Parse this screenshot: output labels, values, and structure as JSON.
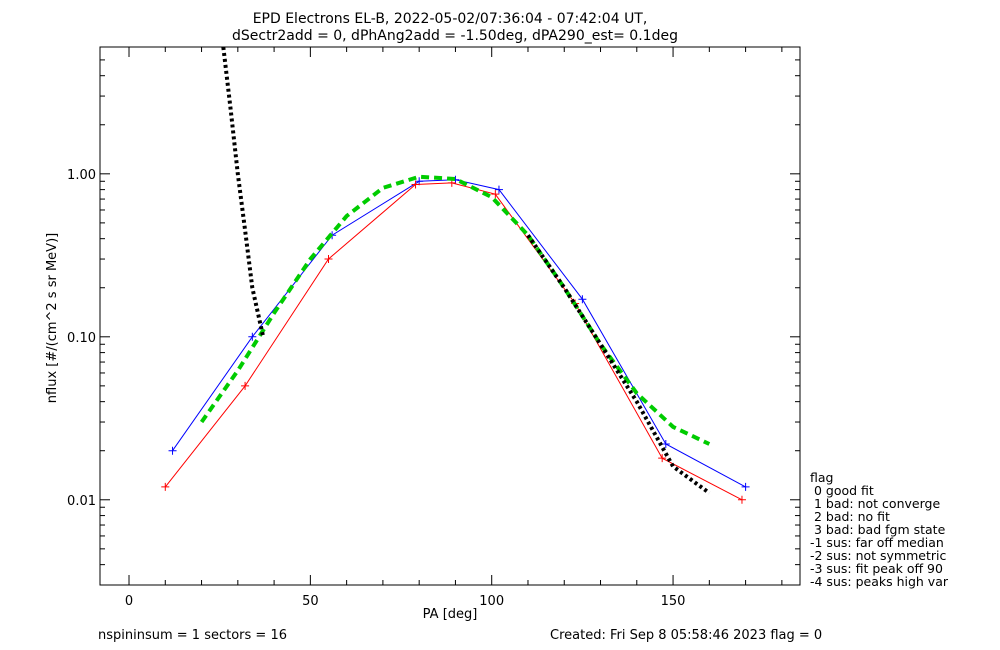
{
  "chart_data": {
    "type": "line",
    "title": "EPD Electrons EL-B, 2022-05-02/07:36:04 - 07:42:04 UT,",
    "subtitle": "dSectr2add = 0, dPhAng2add = -1.50deg, dPA290_est=   0.1deg",
    "xlabel": "PA [deg]",
    "ylabel": "nflux [#/(cm^2 s sr MeV)]",
    "xlim": [
      -8,
      185
    ],
    "ylim": [
      0.003,
      6
    ],
    "yscale": "log",
    "x_ticks": [
      {
        "value": 0,
        "label": "0"
      },
      {
        "value": 50,
        "label": "50"
      },
      {
        "value": 100,
        "label": "100"
      },
      {
        "value": 150,
        "label": "150"
      }
    ],
    "y_ticks": [
      {
        "value": 0.01,
        "label": "0.01"
      },
      {
        "value": 0.1,
        "label": "0.10"
      },
      {
        "value": 1,
        "label": "1.00"
      }
    ],
    "series": [
      {
        "color": "#0000ff",
        "style": "solid",
        "marker": "+",
        "x": [
          12,
          34,
          56,
          80,
          90,
          102,
          125,
          148,
          170
        ],
        "y": [
          0.02,
          0.1,
          0.42,
          0.9,
          0.92,
          0.8,
          0.17,
          0.022,
          0.012
        ]
      },
      {
        "color": "#ff0000",
        "style": "solid",
        "marker": "+",
        "x": [
          10,
          32,
          55,
          79,
          89,
          101,
          123,
          147,
          169
        ],
        "y": [
          0.012,
          0.05,
          0.3,
          0.86,
          0.88,
          0.75,
          0.16,
          0.018,
          0.01
        ]
      },
      {
        "color": "#00cc00",
        "style": "dashed",
        "x": [
          20,
          30,
          40,
          50,
          60,
          70,
          80,
          90,
          100,
          110,
          120,
          130,
          140,
          150,
          160
        ],
        "y": [
          0.03,
          0.062,
          0.14,
          0.3,
          0.55,
          0.82,
          0.96,
          0.93,
          0.72,
          0.42,
          0.2,
          0.09,
          0.045,
          0.028,
          0.022
        ]
      },
      {
        "color": "#000000",
        "style": "dotted",
        "x": [
          26,
          28,
          30,
          32,
          34,
          37
        ],
        "y": [
          6,
          2.5,
          1.0,
          0.45,
          0.2,
          0.1
        ]
      },
      {
        "color": "#000000",
        "style": "dotted",
        "x": [
          110,
          120,
          130,
          140,
          150,
          160
        ],
        "y": [
          0.42,
          0.2,
          0.09,
          0.04,
          0.016,
          0.011
        ]
      }
    ],
    "legend": {
      "placement": "right",
      "items": [
        "flag",
        " 0 good fit",
        " 1 bad: not converge",
        " 2 bad: no fit",
        " 3 bad: bad fgm state",
        "-1 sus: far off median",
        "-2 sus: not symmetric",
        "-3 sus: fit peak off 90",
        "-4 sus: peaks high var"
      ]
    },
    "footer": {
      "left": "nspininsum =  1  sectors = 16",
      "right": "Created: Fri Sep  8 05:58:46 2023   flag = 0"
    }
  }
}
